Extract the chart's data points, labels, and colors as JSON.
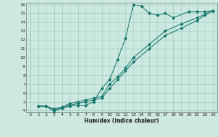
{
  "xlabel": "Humidex (Indice chaleur)",
  "bg_color": "#cce8e0",
  "grid_color": "#99ccbb",
  "line_color": "#1a7a6e",
  "xlim": [
    -0.5,
    23.5
  ],
  "ylim": [
    3.8,
    16.2
  ],
  "xticks": [
    0,
    1,
    2,
    3,
    4,
    5,
    6,
    7,
    8,
    9,
    10,
    11,
    12,
    13,
    14,
    15,
    16,
    17,
    18,
    19,
    20,
    21,
    22,
    23
  ],
  "yticks": [
    4,
    5,
    6,
    7,
    8,
    9,
    10,
    11,
    12,
    13,
    14,
    15,
    16
  ],
  "line1_x": [
    1,
    2,
    3,
    4,
    5,
    6,
    7,
    8,
    9,
    10,
    11,
    12,
    13,
    14,
    15,
    16,
    17,
    18,
    20,
    21,
    22,
    23
  ],
  "line1_y": [
    4.5,
    4.5,
    3.9,
    4.3,
    4.5,
    4.6,
    4.6,
    5.0,
    6.5,
    7.5,
    9.8,
    12.2,
    16.0,
    15.8,
    15.0,
    14.8,
    15.0,
    14.5,
    15.2,
    15.2,
    15.2,
    15.3
  ],
  "line2_x": [
    1,
    2,
    3,
    4,
    5,
    6,
    7,
    8,
    9,
    10,
    11,
    12,
    13,
    15,
    17,
    19,
    21,
    22,
    23
  ],
  "line2_y": [
    4.5,
    4.5,
    4.2,
    4.4,
    4.8,
    5.0,
    5.2,
    5.4,
    5.6,
    7.0,
    7.8,
    8.8,
    10.0,
    11.5,
    13.0,
    13.8,
    14.5,
    14.9,
    15.3
  ],
  "line3_x": [
    1,
    2,
    3,
    4,
    5,
    6,
    7,
    8,
    9,
    10,
    11,
    12,
    13,
    15,
    17,
    19,
    21,
    22,
    23
  ],
  "line3_y": [
    4.5,
    4.5,
    4.1,
    4.3,
    4.6,
    4.8,
    5.0,
    5.2,
    5.4,
    6.5,
    7.5,
    8.5,
    9.5,
    11.0,
    12.5,
    13.3,
    14.2,
    14.8,
    15.3
  ]
}
